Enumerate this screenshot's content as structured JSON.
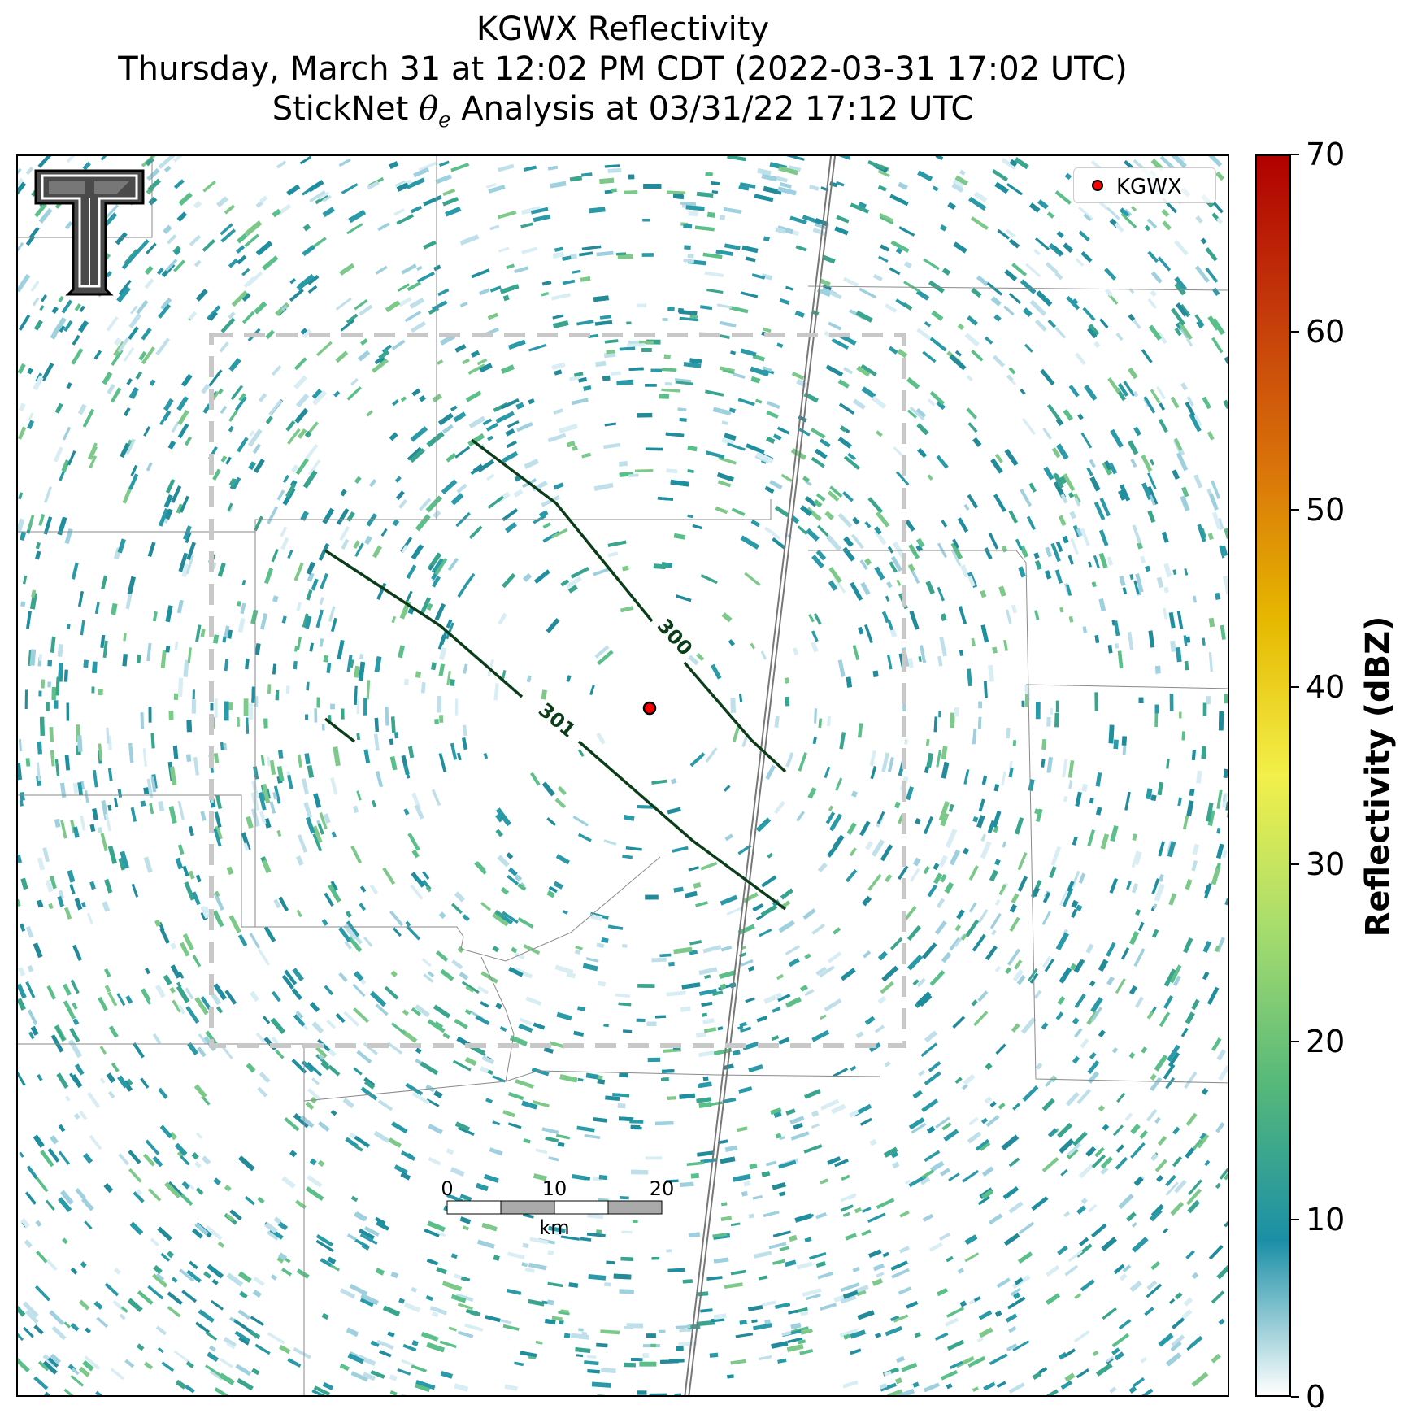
{
  "title": {
    "line1": "KGWX Reflectivity",
    "line2": "Thursday, March 31 at 12:02 PM CDT (2022-03-31 17:02 UTC)",
    "line3_prefix": "StickNet ",
    "line3_theta": "θ",
    "line3_sub": "e",
    "line3_suffix": " Analysis at 03/31/22 17:12 UTC"
  },
  "legend": {
    "label": "KGWX",
    "marker_color": "#ff0000"
  },
  "logo": {
    "name": "Texas Tech double-T logo",
    "text": "TT"
  },
  "radar": {
    "site": "KGWX"
  },
  "contours": [
    {
      "value": 300,
      "label": "300",
      "color": "#0b3d1a"
    },
    {
      "value": 301,
      "label": "301",
      "color": "#0b3d1a"
    }
  ],
  "scale_bar": {
    "ticks": [
      "0",
      "10",
      "20"
    ],
    "unit": "km"
  },
  "colorbar": {
    "title": "Reflectivity (dBZ)",
    "ticks": [
      "0",
      "10",
      "20",
      "30",
      "40",
      "50",
      "60",
      "70"
    ],
    "min": 0,
    "max": 70,
    "stops": [
      "#ffffff",
      "#1b8fa6",
      "#55b87a",
      "#a6dc6e",
      "#f2f04a",
      "#e6b800",
      "#d9730a",
      "#c43a0a",
      "#b00000"
    ]
  }
}
